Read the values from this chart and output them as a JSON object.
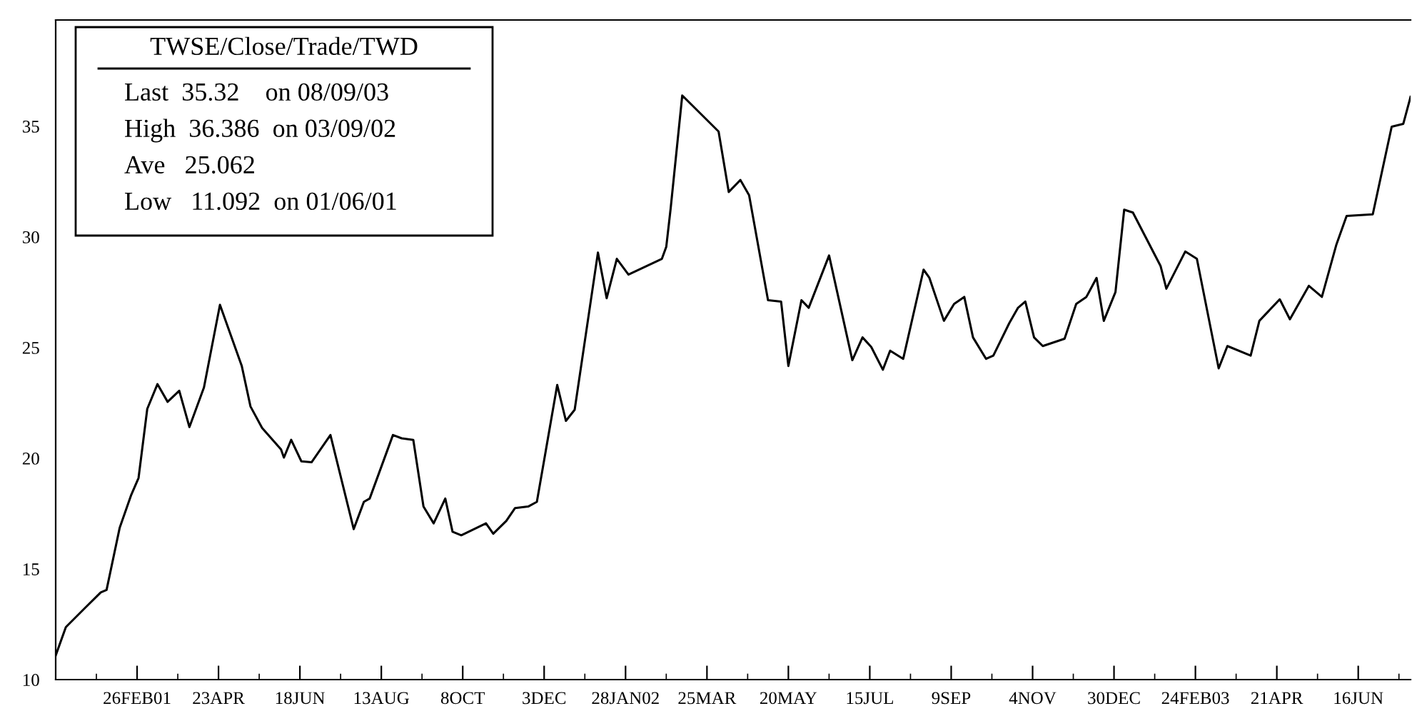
{
  "chart_data": {
    "type": "line",
    "title": "TWSE/Close/Trade/TWD",
    "annotations": [
      "Last  35.32    on 08/09/03",
      "High  36.386  on 03/09/02",
      "Ave   25.062",
      "Low   11.092  on 01/06/01"
    ],
    "series": [
      {
        "color": "#000000",
        "x": [
          "2001-01-01",
          "2001-01-08",
          "2001-01-22",
          "2001-02-01",
          "2001-02-05",
          "2001-02-14",
          "2001-02-22",
          "2001-02-27",
          "2001-03-05",
          "2001-03-12",
          "2001-03-19",
          "2001-03-27",
          "2001-04-03",
          "2001-04-13",
          "2001-04-24",
          "2001-05-09",
          "2001-05-15",
          "2001-05-23",
          "2001-06-05",
          "2001-06-07",
          "2001-06-12",
          "2001-06-19",
          "2001-06-26",
          "2001-07-09",
          "2001-07-25",
          "2001-08-01",
          "2001-08-05",
          "2001-08-21",
          "2001-08-27",
          "2001-09-04",
          "2001-09-11",
          "2001-09-18",
          "2001-09-26",
          "2001-10-01",
          "2001-10-07",
          "2001-10-24",
          "2001-10-29",
          "2001-11-07",
          "2001-11-13",
          "2001-11-22",
          "2001-11-28",
          "2001-12-12",
          "2001-12-18",
          "2001-12-24",
          "2002-01-09",
          "2002-01-15",
          "2002-01-22",
          "2002-01-30",
          "2002-02-22",
          "2002-02-25",
          "2002-02-28",
          "2002-03-08",
          "2002-04-02",
          "2002-04-09",
          "2002-04-17",
          "2002-04-23",
          "2002-05-06",
          "2002-05-15",
          "2002-05-20",
          "2002-05-29",
          "2002-06-03",
          "2002-06-17",
          "2002-07-03",
          "2002-07-10",
          "2002-07-16",
          "2002-07-24",
          "2002-07-29",
          "2002-08-07",
          "2002-08-21",
          "2002-08-25",
          "2002-09-04",
          "2002-09-11",
          "2002-09-18",
          "2002-09-24",
          "2002-10-03",
          "2002-10-08",
          "2002-10-19",
          "2002-10-25",
          "2002-10-30",
          "2002-11-05",
          "2002-11-11",
          "2002-11-26",
          "2002-12-04",
          "2002-12-11",
          "2002-12-18",
          "2002-12-23",
          "2002-12-31",
          "2003-01-06",
          "2003-01-12",
          "2003-01-31",
          "2003-02-04",
          "2003-02-17",
          "2003-02-25",
          "2003-03-12",
          "2003-03-18",
          "2003-04-03",
          "2003-04-09",
          "2003-04-23",
          "2003-04-30",
          "2003-05-13",
          "2003-05-22",
          "2003-06-01",
          "2003-06-08",
          "2003-06-26",
          "2003-07-09",
          "2003-07-17",
          "2003-07-22"
        ],
        "values": [
          11.09,
          12.37,
          13.29,
          13.94,
          14.05,
          16.85,
          18.35,
          19.11,
          22.23,
          23.35,
          22.55,
          23.05,
          21.41,
          23.2,
          26.93,
          24.17,
          22.34,
          21.37,
          20.4,
          20.03,
          20.83,
          19.86,
          19.82,
          21.05,
          16.8,
          18.03,
          18.18,
          21.05,
          20.9,
          20.83,
          17.82,
          17.06,
          18.18,
          16.68,
          16.52,
          17.06,
          16.59,
          17.17,
          17.75,
          17.82,
          18.03,
          23.31,
          21.69,
          22.19,
          29.29,
          27.23,
          29.01,
          28.3,
          29.01,
          29.55,
          31.27,
          36.39,
          34.76,
          32.03,
          32.57,
          31.88,
          27.14,
          27.08,
          24.17,
          27.14,
          26.8,
          29.16,
          24.43,
          25.46,
          25.03,
          24.0,
          24.86,
          24.49,
          28.52,
          28.15,
          26.21,
          26.97,
          27.29,
          25.46,
          24.49,
          24.64,
          26.11,
          26.8,
          27.08,
          25.46,
          25.07,
          25.4,
          26.97,
          27.29,
          28.15,
          26.21,
          27.51,
          31.23,
          31.1,
          28.69,
          27.66,
          29.34,
          29.01,
          24.06,
          25.07,
          24.64,
          26.21,
          27.18,
          26.28,
          27.79,
          27.29,
          29.66,
          30.95,
          31.02,
          34.98,
          35.11,
          36.33
        ]
      }
    ],
    "xlim": [
      "2001-01-01",
      "2003-07-22"
    ],
    "xticks": [
      {
        "value": "2001-01-29",
        "label": null
      },
      {
        "value": "2001-02-26",
        "label": "26FEB01"
      },
      {
        "value": "2001-03-26",
        "label": null
      },
      {
        "value": "2001-04-23",
        "label": "23APR"
      },
      {
        "value": "2001-05-21",
        "label": null
      },
      {
        "value": "2001-06-18",
        "label": "18JUN"
      },
      {
        "value": "2001-07-16",
        "label": null
      },
      {
        "value": "2001-08-13",
        "label": "13AUG"
      },
      {
        "value": "2001-09-10",
        "label": null
      },
      {
        "value": "2001-10-08",
        "label": "8OCT"
      },
      {
        "value": "2001-11-05",
        "label": null
      },
      {
        "value": "2001-12-03",
        "label": "3DEC"
      },
      {
        "value": "2001-12-31",
        "label": null
      },
      {
        "value": "2002-01-28",
        "label": "28JAN02"
      },
      {
        "value": "2002-02-25",
        "label": null
      },
      {
        "value": "2002-03-25",
        "label": "25MAR"
      },
      {
        "value": "2002-04-22",
        "label": null
      },
      {
        "value": "2002-05-20",
        "label": "20MAY"
      },
      {
        "value": "2002-06-17",
        "label": null
      },
      {
        "value": "2002-07-15",
        "label": "15JUL"
      },
      {
        "value": "2002-08-12",
        "label": null
      },
      {
        "value": "2002-09-09",
        "label": "9SEP"
      },
      {
        "value": "2002-10-07",
        "label": null
      },
      {
        "value": "2002-11-04",
        "label": "4NOV"
      },
      {
        "value": "2002-12-02",
        "label": null
      },
      {
        "value": "2002-12-30",
        "label": "30DEC"
      },
      {
        "value": "2003-01-27",
        "label": null
      },
      {
        "value": "2003-02-24",
        "label": "24FEB03"
      },
      {
        "value": "2003-03-24",
        "label": null
      },
      {
        "value": "2003-04-21",
        "label": "21APR"
      },
      {
        "value": "2003-05-19",
        "label": null
      },
      {
        "value": "2003-06-16",
        "label": "16JUN"
      },
      {
        "value": "2003-07-14",
        "label": null
      }
    ],
    "ylim": [
      10,
      39.8
    ],
    "yticks": [
      10,
      15,
      20,
      25,
      30,
      35
    ],
    "grid": false,
    "legend": false,
    "marker": "none",
    "line_style": "solid"
  }
}
